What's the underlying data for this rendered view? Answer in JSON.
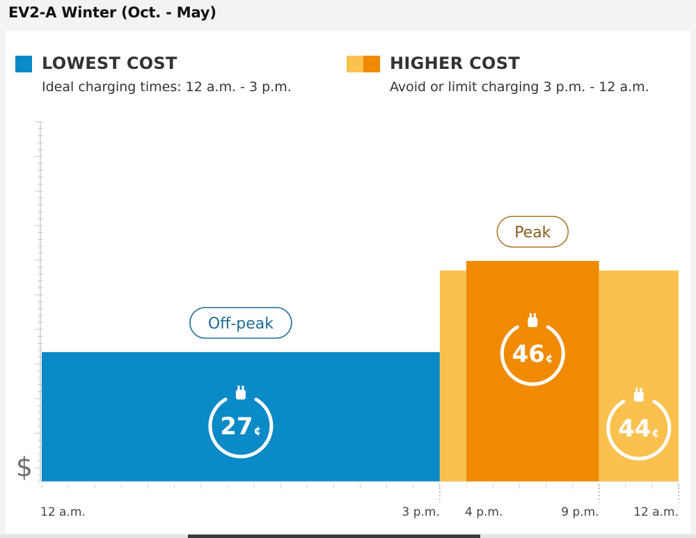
{
  "header": {
    "title": "EV2-A Winter (Oct. - May)"
  },
  "legend": {
    "low": {
      "title": "LOWEST COST",
      "desc": "Ideal charging times: 12 a.m. - 3 p.m.",
      "color": "#0a8ac7"
    },
    "high": {
      "title": "HIGHER COST",
      "desc": "Avoid or limit charging 3 p.m. - 12 a.m.",
      "color_light": "#fbc14e",
      "color_dark": "#f08a00"
    }
  },
  "chart_data": {
    "type": "bar",
    "ylabel": "$",
    "ylim": [
      0,
      75
    ],
    "x_ticks": [
      "12 a.m.",
      "3 p.m.",
      "4 p.m.",
      "9 p.m.",
      "12 a.m."
    ],
    "x_tick_hours": [
      0,
      15,
      16,
      21,
      24
    ],
    "periods": [
      {
        "name": "Off-peak",
        "start_hour": 0,
        "end_hour": 15,
        "value": 27,
        "label": "27",
        "unit": "¢",
        "color": "#0a8ac7"
      },
      {
        "name": "",
        "start_hour": 15,
        "end_hour": 16,
        "value": 44,
        "label": "",
        "unit": "",
        "color": "#fbc14e"
      },
      {
        "name": "Peak",
        "start_hour": 16,
        "end_hour": 21,
        "value": 46,
        "label": "46",
        "unit": "¢",
        "color": "#f08a00"
      },
      {
        "name": "",
        "start_hour": 21,
        "end_hour": 24,
        "value": 44,
        "label": "44",
        "unit": "¢",
        "color": "#fbc14e"
      }
    ]
  }
}
